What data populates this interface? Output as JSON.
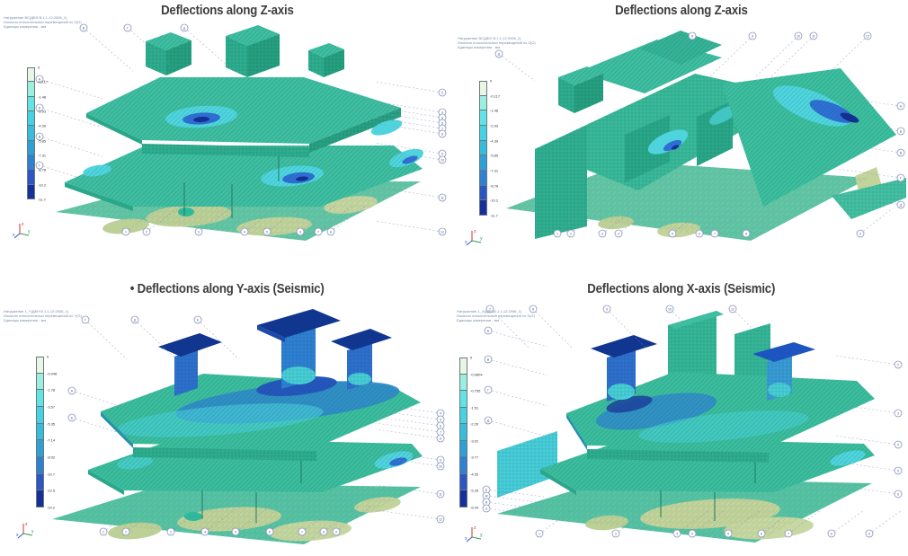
{
  "panels": [
    {
      "key": "tl",
      "title": "Deflections along Z-axis",
      "info_lines": [
        "Нагружение ВС(ДБН В.1.1-12:2006_1)",
        "Изополя относительных перемещений по Z(G)",
        "Единицы измерения - мм"
      ],
      "legend_values": [
        "0",
        "-0.117",
        "-1.48",
        "-2.93",
        "-4.39",
        "-5.85",
        "-7.31",
        "-8.78",
        "-10.2",
        "-11.7"
      ]
    },
    {
      "key": "tr",
      "title": "Deflections along Z-axis",
      "info_lines": [
        "Нагружение ВС(ДБН В.1.1-12:2006_1)",
        "Изополя относительных перемещений по Z(G)",
        "Единицы измерения - мм"
      ],
      "legend_values": [
        "0",
        "-0.117",
        "-1.48",
        "-2.93",
        "-4.39",
        "-5.85",
        "-7.31",
        "-8.78",
        "-10.2",
        "-11.7"
      ]
    },
    {
      "key": "bl",
      "title": "• Deflections along Y-axis (Seismic)",
      "info_lines": [
        "Нагружение 1_Y(ДБН В.1.1-12:2006_1)",
        "Изополя относительных перемещений по Y(G)",
        "Единицы измерения - мм"
      ],
      "legend_values": [
        "0",
        "-0.048",
        "-1.78",
        "-3.57",
        "-5.35",
        "-7.14",
        "-8.92",
        "-10.7",
        "-12.5",
        "-14.2"
      ]
    },
    {
      "key": "br",
      "title": "Deflections along X-axis (Seismic)",
      "info_lines": [
        "Нагружение 1_X(ДБН В.1.1-12:2006_1)",
        "Изополя относительных перемещений по X(G)",
        "Единицы измерения - мм"
      ],
      "legend_values": [
        "0",
        "-0.0804",
        "-0.755",
        "-1.51",
        "-2.26",
        "-3.02",
        "-3.77",
        "-4.53",
        "-5.28",
        "-6.04"
      ]
    }
  ],
  "legend_colors": [
    "#e9f6e6",
    "#9ceee0",
    "#63e3e6",
    "#45d2e2",
    "#37bcdc",
    "#2fa0d6",
    "#2f7fd2",
    "#2d55c6",
    "#162f9a"
  ],
  "grid_labels": {
    "numbers": [
      "1",
      "2",
      "3",
      "4",
      "5",
      "6",
      "7",
      "8",
      "9",
      "10",
      "11",
      "12"
    ],
    "letters": [
      "А",
      "Б",
      "В",
      "Г",
      "Д",
      "Е",
      "Ж",
      "И",
      "К",
      "Л"
    ]
  },
  "triad": {
    "x_label": "x",
    "y_label": "y",
    "z_label": "z"
  },
  "palette": {
    "model_teal": "#3ebda0",
    "wall_teal_dark": "#2fae90",
    "contour_cyan": "#4fd4de",
    "contour_blue": "#2f6fd4",
    "contour_navy": "#142f94",
    "ground_green": "#57c3a4",
    "ground_khaki": "#c2d39c",
    "grid_line": "#8590bd"
  },
  "chart_data": [
    {
      "type": "heatmap",
      "title": "Deflections along Z-axis",
      "subject": "building FE model displacement isofields",
      "units": "mm",
      "legend_position": "left",
      "legend_values": [
        0,
        -0.117,
        -1.48,
        -2.93,
        -4.39,
        -5.85,
        -7.31,
        -8.78,
        -10.2,
        -11.7
      ],
      "range": [
        0,
        -11.7
      ]
    },
    {
      "type": "heatmap",
      "title": "Deflections along Z-axis",
      "subject": "building FE model displacement isofields (rear view)",
      "units": "mm",
      "legend_position": "left",
      "legend_values": [
        0,
        -0.117,
        -1.48,
        -2.93,
        -4.39,
        -5.85,
        -7.31,
        -8.78,
        -10.2,
        -11.7
      ],
      "range": [
        0,
        -11.7
      ]
    },
    {
      "type": "heatmap",
      "title": "Deflections along Y-axis (Seismic)",
      "subject": "building FE model displacement isofields",
      "units": "mm",
      "legend_position": "left",
      "legend_values": [
        0,
        -0.048,
        -1.78,
        -3.57,
        -5.35,
        -7.14,
        -8.92,
        -10.7,
        -12.5,
        -14.2
      ],
      "range": [
        0,
        -14.2
      ]
    },
    {
      "type": "heatmap",
      "title": "Deflections along X-axis (Seismic)",
      "subject": "building FE model displacement isofields",
      "units": "mm",
      "legend_position": "left",
      "legend_values": [
        0,
        -0.0804,
        -0.755,
        -1.51,
        -2.26,
        -3.02,
        -3.77,
        -4.53,
        -5.28,
        -6.04
      ],
      "range": [
        0,
        -6.04
      ]
    }
  ]
}
